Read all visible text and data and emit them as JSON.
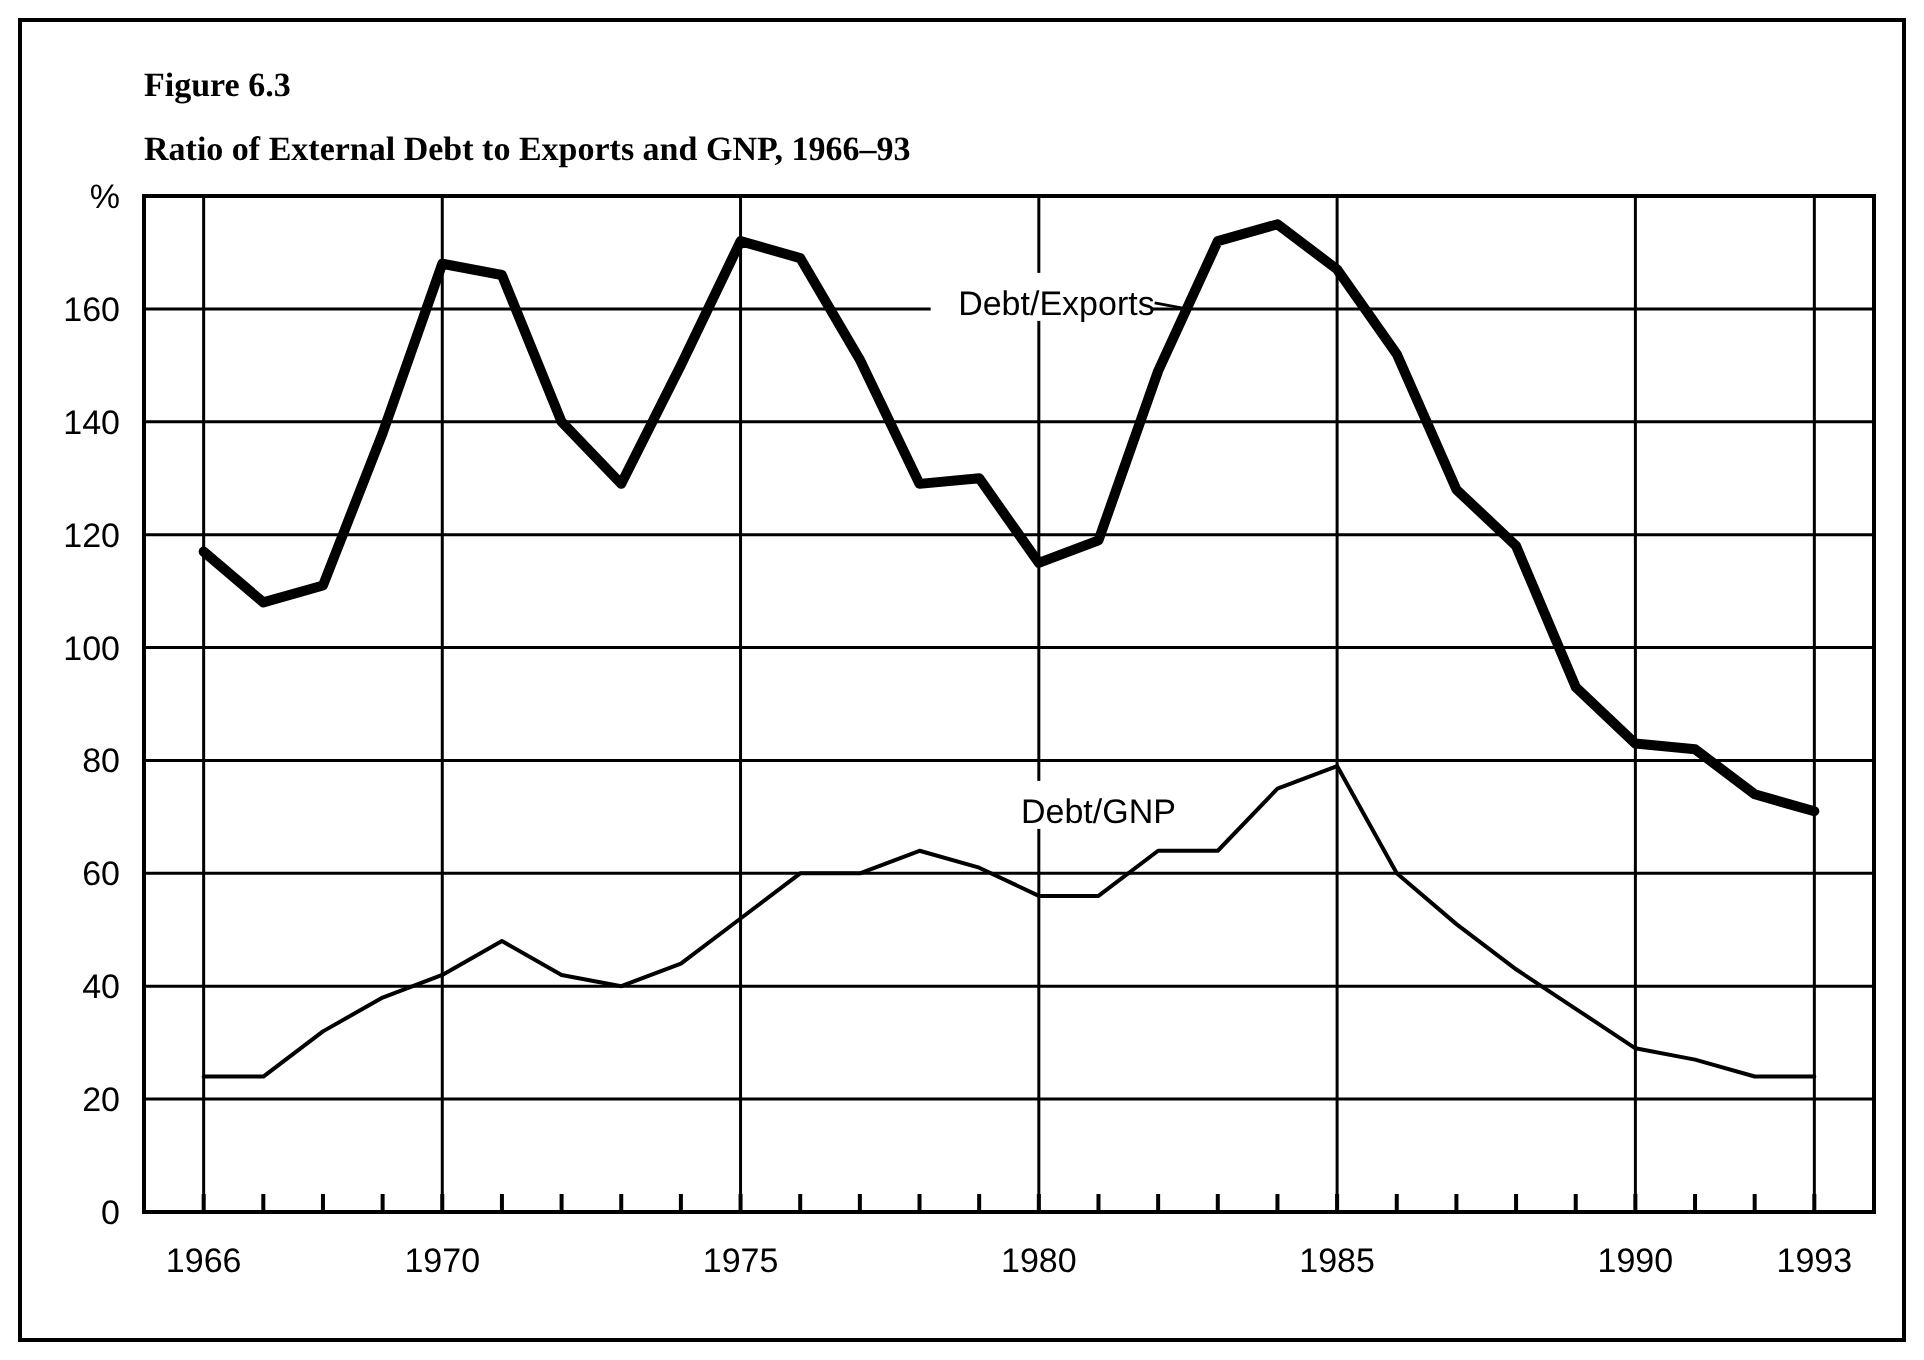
{
  "chart_data": {
    "type": "line",
    "title": "Figure 6.3",
    "subtitle": "Ratio of External Debt to Exports and GNP, 1966–93",
    "x": [
      1966,
      1967,
      1968,
      1969,
      1970,
      1971,
      1972,
      1973,
      1974,
      1975,
      1976,
      1977,
      1978,
      1979,
      1980,
      1981,
      1982,
      1983,
      1984,
      1985,
      1986,
      1987,
      1988,
      1989,
      1990,
      1991,
      1992,
      1993
    ],
    "series": [
      {
        "name": "Debt/Exports",
        "color": "#000000",
        "values": [
          117,
          108,
          111,
          138,
          168,
          166,
          140,
          129,
          150,
          172,
          169,
          151,
          129,
          130,
          115,
          119,
          149,
          172,
          175,
          167,
          152,
          128,
          118,
          93,
          83,
          82,
          74,
          71
        ]
      },
      {
        "name": "Debt/GNP",
        "color": "#000000",
        "values": [
          24,
          24,
          32,
          38,
          42,
          48,
          42,
          40,
          44,
          52,
          60,
          60,
          64,
          61,
          56,
          56,
          64,
          64,
          75,
          79,
          60,
          51,
          43,
          36,
          29,
          27,
          24,
          24
        ]
      }
    ],
    "xlim": [
      1965,
      1994
    ],
    "xticks": [
      1966,
      {
        "value": 1967,
        "label": null
      },
      {
        "value": 1968,
        "label": null
      },
      {
        "value": 1969,
        "label": null
      },
      1970,
      {
        "value": 1971,
        "label": null
      },
      {
        "value": 1972,
        "label": null
      },
      {
        "value": 1973,
        "label": null
      },
      {
        "value": 1974,
        "label": null
      },
      1975,
      {
        "value": 1976,
        "label": null
      },
      {
        "value": 1977,
        "label": null
      },
      {
        "value": 1978,
        "label": null
      },
      {
        "value": 1979,
        "label": null
      },
      1980,
      {
        "value": 1981,
        "label": null
      },
      {
        "value": 1982,
        "label": null
      },
      {
        "value": 1983,
        "label": null
      },
      {
        "value": 1984,
        "label": null
      },
      1985,
      {
        "value": 1986,
        "label": null
      },
      {
        "value": 1987,
        "label": null
      },
      {
        "value": 1988,
        "label": null
      },
      {
        "value": 1989,
        "label": null
      },
      1990,
      {
        "value": 1991,
        "label": null
      },
      {
        "value": 1992,
        "label": null
      },
      1993
    ],
    "ylim": [
      0,
      180
    ],
    "yticks": [
      0,
      20,
      40,
      60,
      80,
      100,
      120,
      140,
      160,
      {
        "value": 180,
        "label": "%"
      }
    ],
    "grid": true
  }
}
